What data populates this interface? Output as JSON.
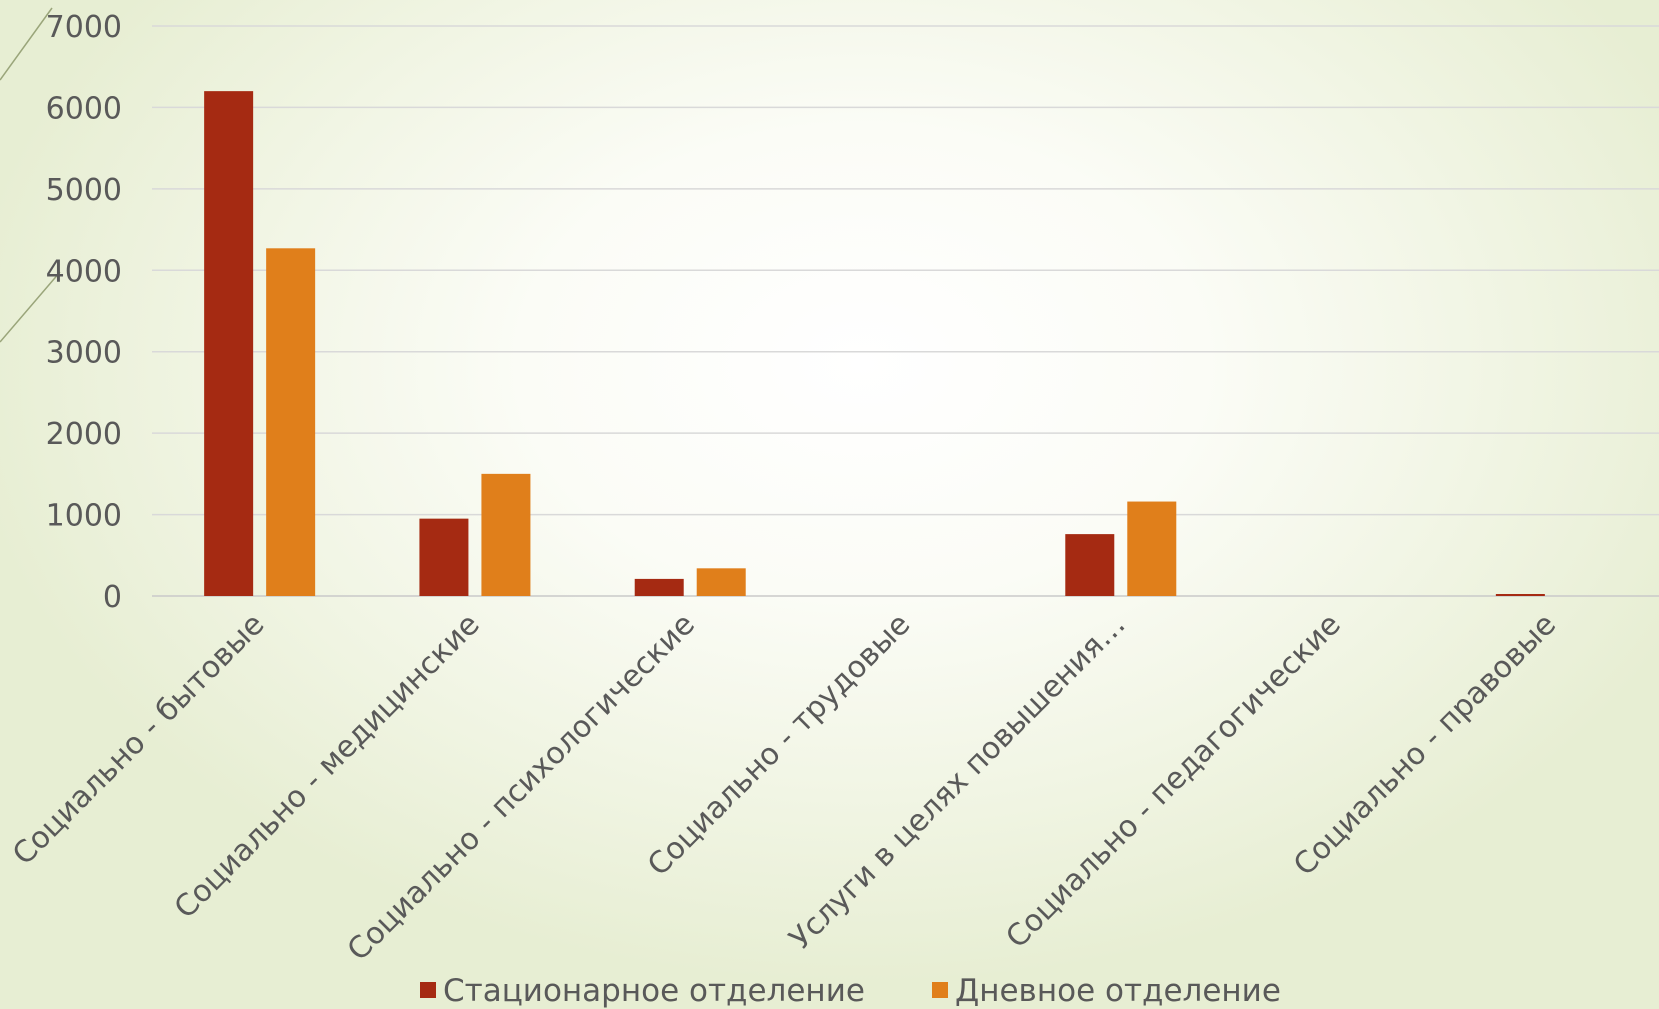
{
  "chart_data": {
    "type": "bar",
    "categories": [
      "Социально - бытовые",
      "Социально - медицинские",
      "Социально - психологические",
      "Социально - трудовые",
      "Услуги в целях повышения…",
      "Социально - педагогические",
      "Социально - правовые"
    ],
    "series": [
      {
        "name": "Стационарное отделение",
        "color": "#a52a12",
        "values": [
          6200,
          950,
          210,
          0,
          760,
          0,
          10
        ]
      },
      {
        "name": "Дневное отделение",
        "color": "#e07f1b",
        "values": [
          4270,
          1500,
          340,
          0,
          1160,
          0,
          0
        ]
      }
    ],
    "ylim": [
      0,
      7000
    ],
    "yticks": [
      0,
      1000,
      2000,
      3000,
      4000,
      5000,
      6000,
      7000
    ],
    "grid": true,
    "legend_position": "bottom"
  }
}
